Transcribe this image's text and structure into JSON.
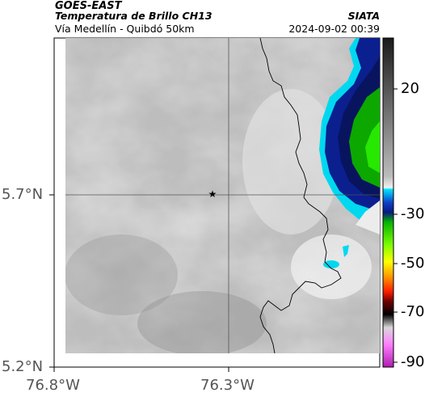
{
  "header": {
    "satellite": "GOES-EAST",
    "product": "Temperatura de Brillo CH13",
    "route": "Vía Medellín - Quibdó 50km",
    "org": "SIATA",
    "datetime": "2024-09-02 00:39"
  },
  "axes": {
    "x_ticks": [
      "76.8°W",
      "76.3°W"
    ],
    "y_ticks": [
      "5.7°N",
      "5.2°N"
    ]
  },
  "colorbar": {
    "labels": [
      "20",
      "-30",
      "-50",
      "-70",
      "-90"
    ],
    "colors": [
      "#2a2a2a",
      "#d8d8d8",
      "#00e0ff",
      "#0a1c8c",
      "#0aff00",
      "#ffff00",
      "#ff3c00",
      "#000000",
      "#ff66ff"
    ]
  },
  "map": {
    "marker": "star-icon",
    "colors": {
      "cloud_gray": "#b8b8b8",
      "cold_blue": "#0b1f8f",
      "cold_green": "#10c000",
      "cyan": "#00d8f0"
    }
  }
}
